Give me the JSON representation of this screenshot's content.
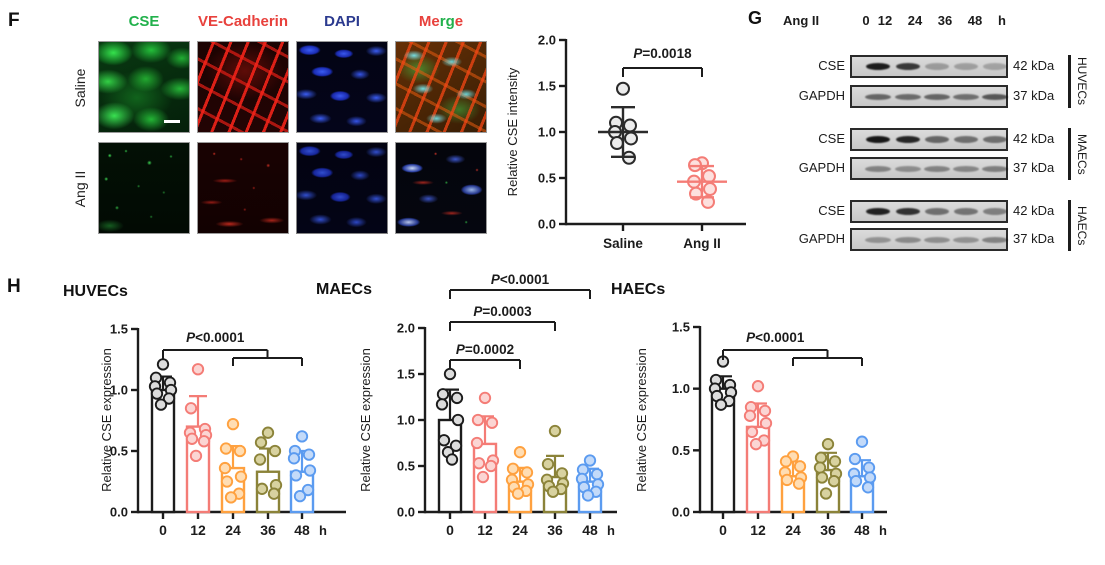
{
  "panel_f": {
    "label": "F",
    "channel_labels": [
      {
        "spans": [
          {
            "text": "CSE",
            "color": "#22B14C"
          }
        ]
      },
      {
        "spans": [
          {
            "text": "VE-Cadherin",
            "color": "#E8413C"
          }
        ]
      },
      {
        "spans": [
          {
            "text": "DAPI",
            "color": "#2B3A8F"
          }
        ]
      },
      {
        "spans": [
          {
            "text": "Me",
            "color": "#E8413C"
          },
          {
            "text": "rg",
            "color": "#22B14C"
          },
          {
            "text": "e",
            "color": "#E8413C"
          }
        ]
      }
    ],
    "row_labels": [
      "Saline",
      "Ang II"
    ]
  },
  "panel_g": {
    "label": "G",
    "header": {
      "prefix": "Ang II",
      "timepoints": [
        "0",
        "12",
        "24",
        "36",
        "48"
      ],
      "unit": "h"
    },
    "groups": [
      {
        "name": "HUVECs",
        "rows": [
          {
            "protein": "CSE",
            "size": "42 kDa",
            "bands": [
              0.92,
              0.78,
              0.28,
              0.26,
              0.24
            ]
          },
          {
            "protein": "GAPDH",
            "size": "37 kDa",
            "bands": [
              0.55,
              0.52,
              0.55,
              0.5,
              0.62
            ]
          }
        ]
      },
      {
        "name": "MAECs",
        "rows": [
          {
            "protein": "CSE",
            "size": "42 kDa",
            "bands": [
              0.95,
              0.88,
              0.55,
              0.5,
              0.5
            ]
          },
          {
            "protein": "GAPDH",
            "size": "37 kDa",
            "bands": [
              0.4,
              0.35,
              0.4,
              0.38,
              0.42
            ]
          }
        ]
      },
      {
        "name": "HAECs",
        "rows": [
          {
            "protein": "CSE",
            "size": "42 kDa",
            "bands": [
              0.9,
              0.82,
              0.5,
              0.48,
              0.42
            ]
          },
          {
            "protein": "GAPDH",
            "size": "37 kDa",
            "bands": [
              0.32,
              0.36,
              0.34,
              0.32,
              0.4
            ]
          }
        ]
      }
    ]
  },
  "panel_h": {
    "label": "H"
  },
  "colors": {
    "ink": "#1c1c1c",
    "black_series": "#1c1c1c",
    "salmon": "#F47C76",
    "orange": "#FFA13F",
    "olive": "#8B8339",
    "blue": "#5B9BF0"
  },
  "chart_data": [
    {
      "id": "cse-intensity-scatter",
      "type": "scatter",
      "title": "",
      "ylabel": "Relative CSE intensity",
      "ylim": [
        0,
        2.0
      ],
      "yticks": [
        0.0,
        0.5,
        1.0,
        1.5,
        2.0
      ],
      "categories": [
        "Saline",
        "Ang II"
      ],
      "series": [
        {
          "name": "Saline",
          "color": "#2b2b2b",
          "point_fill": "#ececec",
          "values": [
            1.47,
            1.1,
            1.07,
            1.0,
            0.93,
            0.88,
            0.72
          ],
          "mean": 1.0,
          "sd": 0.27
        },
        {
          "name": "Ang II",
          "color": "#F47C76",
          "point_fill": "#FDE0DE",
          "values": [
            0.66,
            0.64,
            0.52,
            0.46,
            0.38,
            0.33,
            0.24
          ],
          "mean": 0.46,
          "sd": 0.17
        }
      ],
      "annotations": [
        {
          "label": "P=0.0018",
          "from": 0,
          "to": 1
        }
      ],
      "grid": false,
      "legend": "none"
    },
    {
      "id": "huvecs-bar",
      "type": "bar",
      "title": "HUVECs",
      "ylabel": "Relative CSE expression",
      "ylim": [
        0,
        1.5
      ],
      "yticks": [
        0.0,
        0.5,
        1.0,
        1.5
      ],
      "categories": [
        "0",
        "12",
        "24",
        "36",
        "48"
      ],
      "xunit": "h",
      "values": [
        1.0,
        0.7,
        0.36,
        0.33,
        0.33
      ],
      "sd": [
        0.11,
        0.25,
        0.18,
        0.19,
        0.17
      ],
      "bar_colors": [
        "#1c1c1c",
        "#F47C76",
        "#FFA13F",
        "#8B8339",
        "#5B9BF0"
      ],
      "point_fills": [
        "#dcdcdc",
        "#FBD5D3",
        "#FFDDB3",
        "#D8D2A0",
        "#C3DAF9"
      ],
      "points": [
        [
          1.21,
          1.1,
          1.06,
          1.03,
          1.0,
          0.97,
          0.93,
          0.88
        ],
        [
          1.17,
          0.85,
          0.68,
          0.65,
          0.63,
          0.6,
          0.58,
          0.46
        ],
        [
          0.72,
          0.52,
          0.5,
          0.36,
          0.29,
          0.25,
          0.15,
          0.12
        ],
        [
          0.65,
          0.57,
          0.5,
          0.43,
          0.22,
          0.19,
          0.15
        ],
        [
          0.62,
          0.5,
          0.47,
          0.44,
          0.34,
          0.3,
          0.18,
          0.13
        ]
      ],
      "annotations": [
        {
          "type": "nested",
          "label": "P<0.0001",
          "from": 0,
          "sub_from": 2,
          "sub_to": 4
        }
      ],
      "grid": false
    },
    {
      "id": "maecs-bar",
      "type": "bar",
      "title": "MAECs",
      "ylabel": "Relative CSE expression",
      "ylim": [
        0,
        2.0
      ],
      "yticks": [
        0.0,
        0.5,
        1.0,
        1.5,
        2.0
      ],
      "categories": [
        "0",
        "12",
        "24",
        "36",
        "48"
      ],
      "xunit": "h",
      "values": [
        1.0,
        0.74,
        0.33,
        0.38,
        0.33
      ],
      "sd": [
        0.33,
        0.3,
        0.15,
        0.23,
        0.14
      ],
      "bar_colors": [
        "#1c1c1c",
        "#F47C76",
        "#FFA13F",
        "#8B8339",
        "#5B9BF0"
      ],
      "point_fills": [
        "#dcdcdc",
        "#FBD5D3",
        "#FFDDB3",
        "#D8D2A0",
        "#C3DAF9"
      ],
      "points": [
        [
          1.5,
          1.28,
          1.24,
          1.17,
          1.0,
          0.78,
          0.72,
          0.65,
          0.57
        ],
        [
          1.24,
          1.0,
          0.97,
          0.75,
          0.56,
          0.53,
          0.5,
          0.38
        ],
        [
          0.65,
          0.47,
          0.43,
          0.35,
          0.3,
          0.27,
          0.23,
          0.2
        ],
        [
          0.88,
          0.52,
          0.42,
          0.35,
          0.31,
          0.28,
          0.25,
          0.22
        ],
        [
          0.56,
          0.46,
          0.41,
          0.36,
          0.3,
          0.27,
          0.22,
          0.18
        ]
      ],
      "annotations": [
        {
          "type": "level",
          "label": "P=0.0002",
          "from": 0,
          "to": 2,
          "level": 0
        },
        {
          "type": "level",
          "label": "P=0.0003",
          "from": 0,
          "to": 3,
          "level": 1
        },
        {
          "type": "level",
          "label": "P<0.0001",
          "from": 0,
          "to": 4,
          "level": 2
        }
      ],
      "grid": false
    },
    {
      "id": "haecs-bar",
      "type": "bar",
      "title": "HAECs",
      "ylabel": "Relative CSE expression",
      "ylim": [
        0,
        1.5
      ],
      "yticks": [
        0.0,
        0.5,
        1.0,
        1.5
      ],
      "categories": [
        "0",
        "12",
        "24",
        "36",
        "48"
      ],
      "xunit": "h",
      "values": [
        1.0,
        0.69,
        0.29,
        0.34,
        0.29
      ],
      "sd": [
        0.1,
        0.19,
        0.12,
        0.14,
        0.13
      ],
      "bar_colors": [
        "#1c1c1c",
        "#F47C76",
        "#FFA13F",
        "#8B8339",
        "#5B9BF0"
      ],
      "point_fills": [
        "#dcdcdc",
        "#FBD5D3",
        "#FFDDB3",
        "#D8D2A0",
        "#C3DAF9"
      ],
      "points": [
        [
          1.22,
          1.07,
          1.03,
          1.0,
          0.97,
          0.94,
          0.9,
          0.87
        ],
        [
          1.02,
          0.85,
          0.82,
          0.78,
          0.72,
          0.65,
          0.58,
          0.55
        ],
        [
          0.45,
          0.41,
          0.37,
          0.32,
          0.28,
          0.26,
          0.23
        ],
        [
          0.55,
          0.44,
          0.41,
          0.36,
          0.31,
          0.28,
          0.25,
          0.15
        ],
        [
          0.57,
          0.43,
          0.36,
          0.31,
          0.28,
          0.25,
          0.2
        ]
      ],
      "annotations": [
        {
          "type": "nested",
          "label": "P<0.0001",
          "from": 0,
          "sub_from": 2,
          "sub_to": 4
        }
      ],
      "grid": false
    }
  ]
}
